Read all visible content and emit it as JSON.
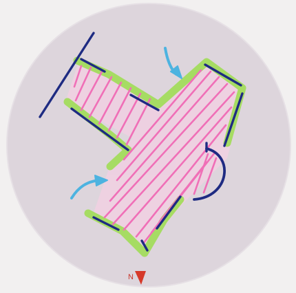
{
  "compass": {
    "north_label": "N",
    "needle_color": "#d6392a"
  },
  "colors": {
    "site_circle": "#ded6dd",
    "hatch": "#f06fb7",
    "hatch_fill": "#f7d4e8",
    "wall_green": "#a6dc63",
    "wall_navy": "#1e2b82",
    "arrow_blue": "#4db3e0"
  },
  "icons": {
    "arrows": [
      "curved-arrow-icon",
      "curved-arrow-icon"
    ],
    "north": "north-arrow-icon"
  }
}
